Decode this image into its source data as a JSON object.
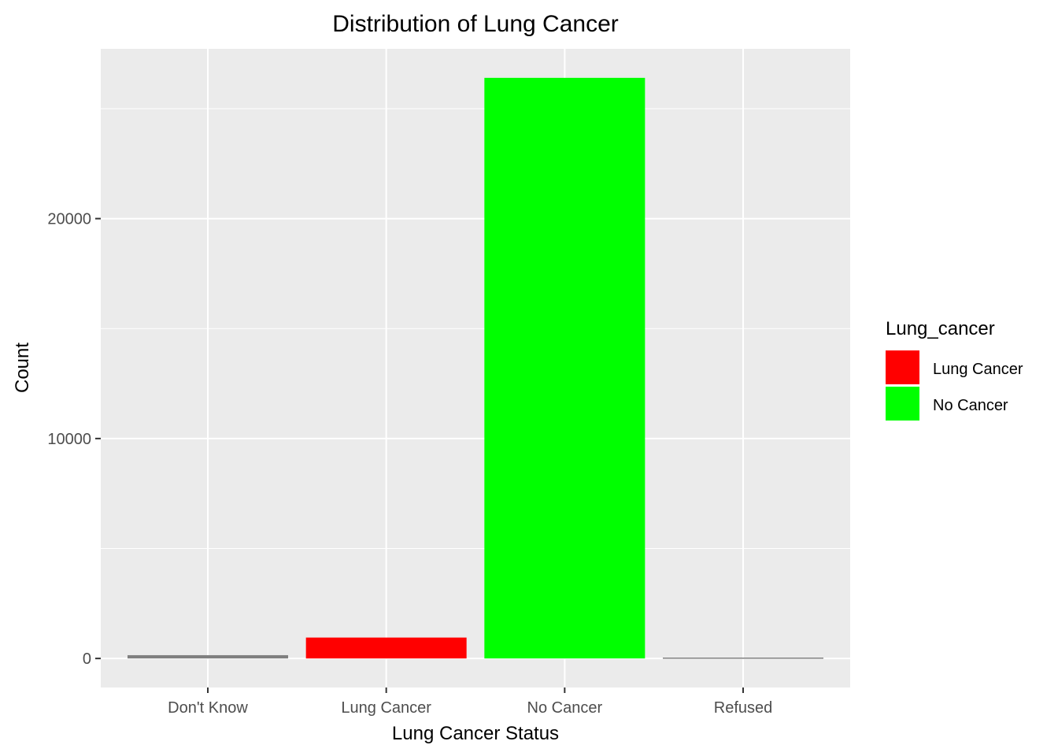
{
  "chart_data": {
    "type": "bar",
    "title": "Distribution of Lung Cancer",
    "xlabel": "Lung Cancer Status",
    "ylabel": "Count",
    "categories": [
      "Don't Know",
      "Lung Cancer",
      "No Cancer",
      "Refused"
    ],
    "values": [
      150,
      950,
      26400,
      40
    ],
    "bar_colors": [
      "#808080",
      "#ff0000",
      "#00ff00",
      "#808080"
    ],
    "ylim": [
      -1320,
      27720
    ],
    "yticks": [
      0,
      10000,
      20000
    ],
    "yticks_minor": [
      5000,
      15000,
      25000
    ],
    "grid": true,
    "panel_background": "#ebebeb",
    "legend": {
      "title": "Lung_cancer",
      "position": "right",
      "items": [
        {
          "label": "Lung Cancer",
          "color": "#ff0000"
        },
        {
          "label": "No Cancer",
          "color": "#00ff00"
        }
      ]
    }
  }
}
